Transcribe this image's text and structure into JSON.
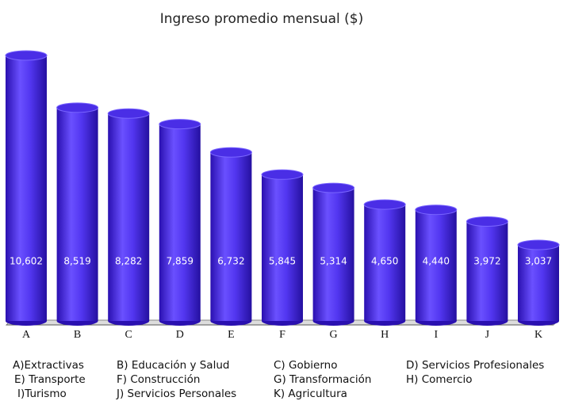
{
  "chart_data": {
    "type": "bar",
    "title": "Ingreso promedio mensual ($)",
    "categories": [
      "A",
      "B",
      "C",
      "D",
      "E",
      "F",
      "G",
      "H",
      "I",
      "J",
      "K"
    ],
    "values": [
      10602,
      8519,
      8282,
      7859,
      6732,
      5845,
      5314,
      4650,
      4440,
      3972,
      3037
    ],
    "value_labels": [
      "10,602",
      "8,519",
      "8,282",
      "7,859",
      "6,732",
      "5,845",
      "5,314",
      "4,650",
      "4,440",
      "3,972",
      "3,037"
    ],
    "color": "#4a2ee6",
    "key": [
      "A)Extractivas",
      "B) Educación y Salud",
      "C) Gobierno",
      "D) Servicios Profesionales",
      "E) Transporte",
      "F) Construcción",
      "G) Transformación",
      "H) Comercio",
      "I)Turismo",
      "J) Servicios Personales",
      "K) Agricultura"
    ]
  }
}
